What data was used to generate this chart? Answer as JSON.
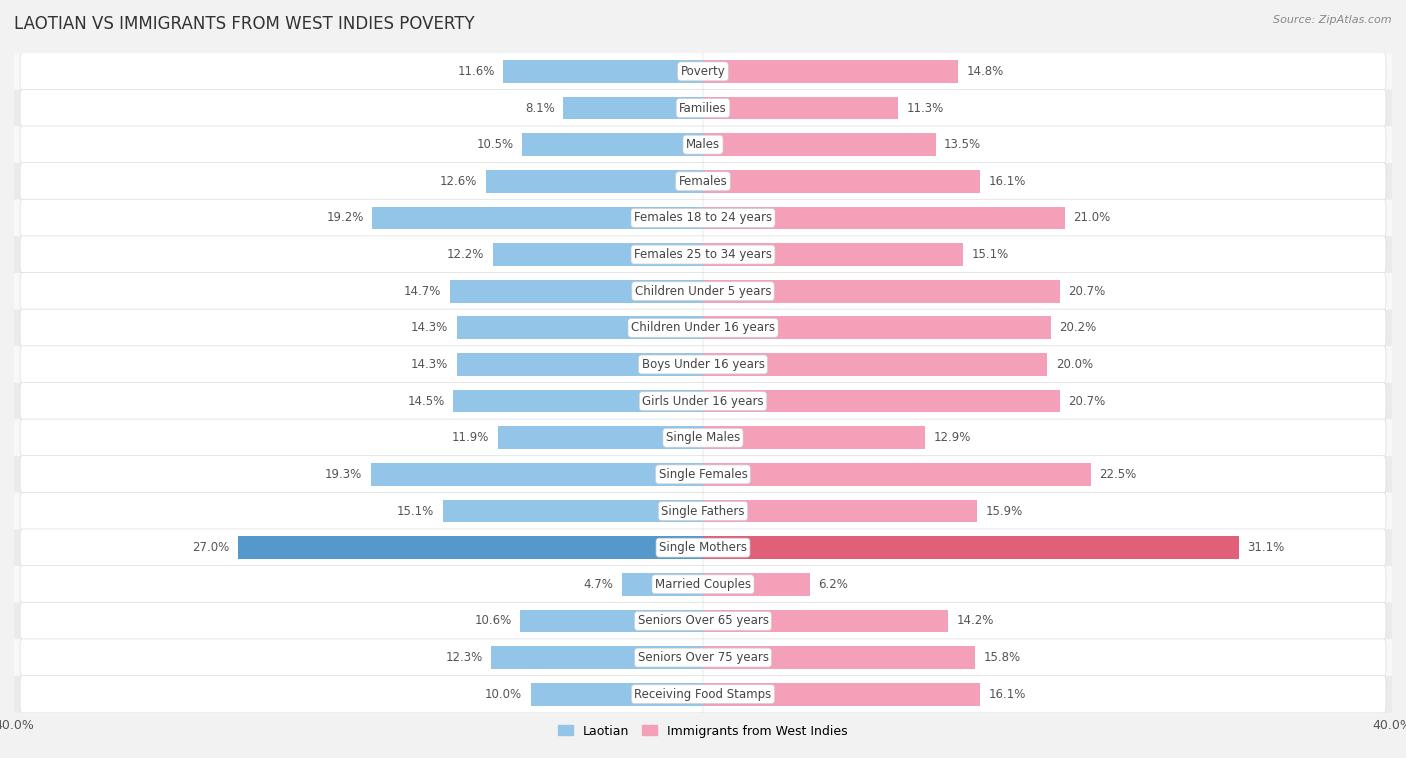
{
  "title": "LAOTIAN VS IMMIGRANTS FROM WEST INDIES POVERTY",
  "source": "Source: ZipAtlas.com",
  "categories": [
    "Poverty",
    "Families",
    "Males",
    "Females",
    "Females 18 to 24 years",
    "Females 25 to 34 years",
    "Children Under 5 years",
    "Children Under 16 years",
    "Boys Under 16 years",
    "Girls Under 16 years",
    "Single Males",
    "Single Females",
    "Single Fathers",
    "Single Mothers",
    "Married Couples",
    "Seniors Over 65 years",
    "Seniors Over 75 years",
    "Receiving Food Stamps"
  ],
  "laotian": [
    11.6,
    8.1,
    10.5,
    12.6,
    19.2,
    12.2,
    14.7,
    14.3,
    14.3,
    14.5,
    11.9,
    19.3,
    15.1,
    27.0,
    4.7,
    10.6,
    12.3,
    10.0
  ],
  "west_indies": [
    14.8,
    11.3,
    13.5,
    16.1,
    21.0,
    15.1,
    20.7,
    20.2,
    20.0,
    20.7,
    12.9,
    22.5,
    15.9,
    31.1,
    6.2,
    14.2,
    15.8,
    16.1
  ],
  "laotian_color": "#92c5e8",
  "west_indies_color": "#f4a0b8",
  "single_mothers_laotian_color": "#5599cc",
  "single_mothers_west_indies_color": "#e0607a",
  "row_bg_odd": "#f5f5f5",
  "row_bg_even": "#e8e8e8",
  "bar_bg_color": "#ffffff",
  "xlim": 40.0,
  "legend_label_laotian": "Laotian",
  "legend_label_west_indies": "Immigrants from West Indies"
}
